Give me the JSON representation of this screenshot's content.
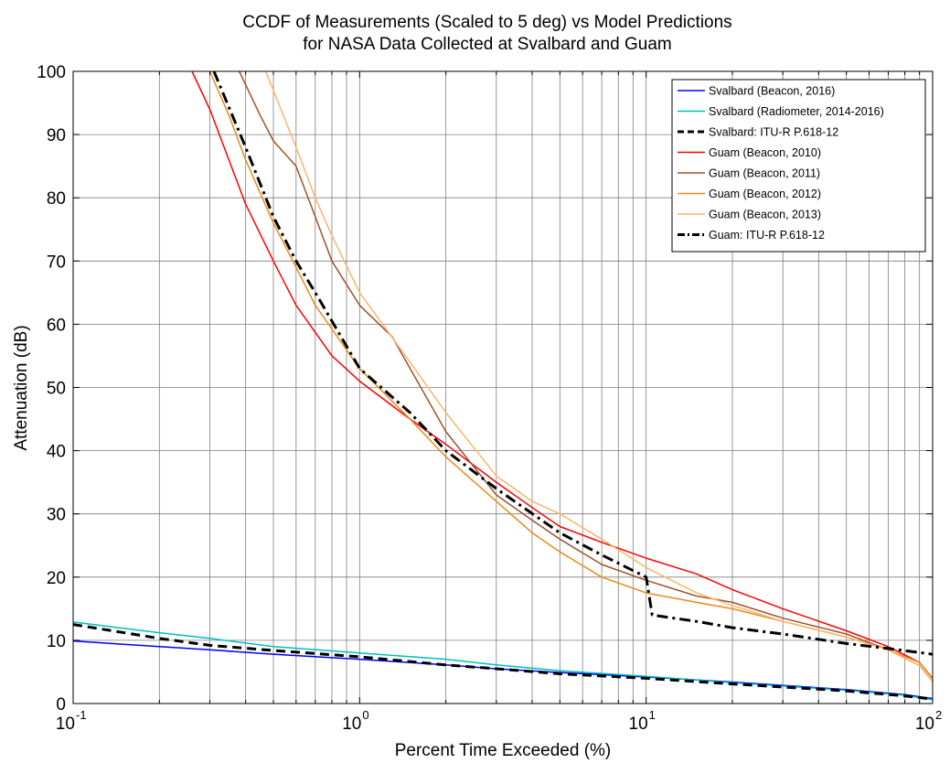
{
  "chart_data": {
    "type": "line",
    "title": [
      "CCDF of Measurements (Scaled to 5 deg) vs Model Predictions",
      "for NASA Data Collected at Svalbard and Guam"
    ],
    "xlabel": "Percent Time Exceeded (%)",
    "ylabel": "Attenuation (dB)",
    "xscale": "log",
    "xlim": [
      0.1,
      100
    ],
    "ylim": [
      0,
      100
    ],
    "xticks": [
      {
        "base": "10",
        "exp": "-1",
        "value": 0.1
      },
      {
        "base": "10",
        "exp": "0",
        "value": 1
      },
      {
        "base": "10",
        "exp": "1",
        "value": 10
      },
      {
        "base": "10",
        "exp": "2",
        "value": 100
      }
    ],
    "yticks": [
      "0",
      "10",
      "20",
      "30",
      "40",
      "50",
      "60",
      "70",
      "80",
      "90",
      "100"
    ],
    "grid": true,
    "legend_position": "top-right",
    "series": [
      {
        "name": "Svalbard (Beacon, 2016)",
        "color": "#0000ff",
        "dash": "solid",
        "x": [
          0.1,
          0.2,
          0.3,
          0.5,
          1,
          2,
          3,
          5,
          10,
          20,
          50,
          80,
          100
        ],
        "y": [
          9.9,
          9.0,
          8.5,
          7.8,
          7.0,
          6.1,
          5.5,
          4.9,
          4.2,
          3.4,
          2.2,
          1.4,
          0.8
        ]
      },
      {
        "name": "Svalbard (Radiometer, 2014-2016)",
        "color": "#00bfbf",
        "dash": "solid",
        "x": [
          0.1,
          0.2,
          0.3,
          0.5,
          1,
          2,
          3,
          5,
          10,
          20,
          50,
          80,
          100
        ],
        "y": [
          12.9,
          11.2,
          10.3,
          9.0,
          8.0,
          7.0,
          6.1,
          5.2,
          4.3,
          3.3,
          2.1,
          1.3,
          0.6
        ]
      },
      {
        "name": "Svalbard: ITU-R P.618-12",
        "color": "#000000",
        "dash": "dashed",
        "x": [
          0.1,
          0.2,
          0.3,
          0.5,
          1,
          2,
          3,
          5,
          10,
          20,
          50,
          80,
          100
        ],
        "y": [
          12.5,
          10.3,
          9.2,
          8.4,
          7.4,
          6.1,
          5.5,
          4.7,
          4.0,
          3.1,
          2.0,
          1.2,
          0.7
        ]
      },
      {
        "name": "Guam (Beacon, 2010)",
        "color": "#ff0000",
        "dash": "solid",
        "x": [
          0.26,
          0.3,
          0.4,
          0.5,
          0.6,
          0.8,
          1,
          1.5,
          2,
          3,
          4,
          5,
          7,
          10,
          15,
          20,
          30,
          50,
          70,
          90,
          100
        ],
        "y": [
          100,
          94,
          79,
          70,
          63,
          55,
          51,
          45,
          41,
          35,
          31,
          28,
          25.5,
          23,
          20.5,
          18,
          15,
          11.5,
          9,
          6.5,
          4
        ]
      },
      {
        "name": "Guam (Beacon, 2011)",
        "color": "#a0522d",
        "dash": "solid",
        "x": [
          0.38,
          0.45,
          0.5,
          0.6,
          0.7,
          0.8,
          1,
          1.3,
          1.5,
          2,
          3,
          4,
          5,
          7,
          10,
          15,
          20,
          30,
          50,
          70,
          90,
          100
        ],
        "y": [
          100,
          93,
          89,
          85,
          77,
          70,
          63,
          58,
          53,
          43,
          33,
          29,
          26,
          22,
          19.5,
          17,
          16,
          13.5,
          11,
          8.5,
          6,
          3.5
        ]
      },
      {
        "name": "Guam (Beacon, 2012)",
        "color": "#e88b1a",
        "dash": "solid",
        "x": [
          0.3,
          0.35,
          0.4,
          0.5,
          0.6,
          0.7,
          1,
          1.5,
          2,
          3,
          4,
          5,
          7,
          10,
          15,
          20,
          30,
          50,
          70,
          90,
          100
        ],
        "y": [
          100,
          93,
          86,
          76,
          69,
          63,
          53,
          45,
          39,
          32,
          27,
          24,
          20,
          17.5,
          16,
          15,
          13,
          10.5,
          8.5,
          6.5,
          4
        ]
      },
      {
        "name": "Guam (Beacon, 2013)",
        "color": "#ffb469",
        "dash": "solid",
        "x": [
          0.47,
          0.6,
          0.7,
          0.8,
          1,
          1.5,
          2,
          3,
          4,
          5,
          7,
          10,
          15,
          20,
          30,
          50,
          70,
          90,
          100
        ],
        "y": [
          100,
          88,
          80,
          74,
          65,
          54,
          46,
          36,
          32,
          30,
          26,
          21.5,
          17.5,
          15.5,
          13,
          10.5,
          8.5,
          6,
          3.5
        ]
      },
      {
        "name": "Guam: ITU-R P.618-12",
        "color": "#000000",
        "dash": "dashdot",
        "x": [
          0.31,
          0.4,
          0.5,
          0.6,
          0.7,
          1,
          1.5,
          2,
          3,
          5,
          7,
          10,
          10.5,
          15,
          20,
          30,
          50,
          70,
          100
        ],
        "y": [
          100,
          88,
          77,
          70,
          65,
          53,
          46,
          40,
          34,
          27,
          23.5,
          20,
          14,
          13,
          12,
          11,
          9.5,
          8.7,
          7.8
        ]
      }
    ]
  }
}
